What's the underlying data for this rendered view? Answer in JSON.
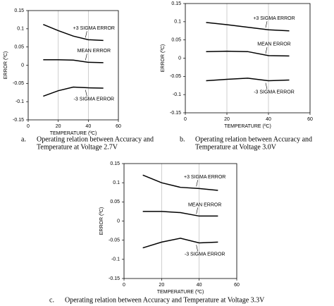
{
  "chart_data": [
    {
      "type": "line",
      "caption_label": "a.",
      "caption": [
        "Operating relation between Accuracy and",
        "Temperature at Voltage 2.7V"
      ],
      "xlabel": "TEMPERATURE (ºC)",
      "ylabel": "ERROR (ºC)",
      "x": [
        10,
        20,
        30,
        40,
        50
      ],
      "xlim": [
        0,
        60
      ],
      "xticks": [
        0,
        20,
        40,
        60
      ],
      "ylim": [
        -0.15,
        0.15
      ],
      "yticks": [
        -0.15,
        -0.1,
        -0.05,
        0,
        0.05,
        0.1,
        0.15
      ],
      "grid": true,
      "series": [
        {
          "name": "+3 SIGMA ERROR",
          "color": "#000000",
          "values": [
            0.112,
            0.095,
            0.08,
            0.07,
            0.068
          ]
        },
        {
          "name": "MEAN ERROR",
          "color": "#000000",
          "values": [
            0.015,
            0.015,
            0.014,
            0.008,
            0.007
          ]
        },
        {
          "name": "-3 SIGMA ERROR",
          "color": "#000000",
          "values": [
            -0.085,
            -0.07,
            -0.06,
            -0.062,
            -0.063
          ]
        }
      ]
    },
    {
      "type": "line",
      "caption_label": "b.",
      "caption": [
        "Operating relation between Accuracy and",
        "Temperature at Voltage 3.0V"
      ],
      "xlabel": "TEMPERATURE (ºC)",
      "ylabel": "ERROR (ºC)",
      "x": [
        10,
        20,
        30,
        40,
        50
      ],
      "xlim": [
        0,
        60
      ],
      "xticks": [
        0,
        20,
        40,
        60
      ],
      "ylim": [
        -0.15,
        0.15
      ],
      "yticks": [
        -0.15,
        -0.1,
        -0.05,
        0,
        0.05,
        0.1,
        0.15
      ],
      "grid": true,
      "series": [
        {
          "name": "+3 SIGMA ERROR",
          "color": "#000000",
          "values": [
            0.098,
            0.092,
            0.085,
            0.078,
            0.075
          ]
        },
        {
          "name": "MEAN ERROR",
          "color": "#000000",
          "values": [
            0.018,
            0.019,
            0.018,
            0.007,
            0.006
          ]
        },
        {
          "name": "-3 SIGMA ERROR",
          "color": "#000000",
          "values": [
            -0.062,
            -0.058,
            -0.055,
            -0.062,
            -0.06
          ]
        }
      ]
    },
    {
      "type": "line",
      "caption_label": "c.",
      "caption": [
        "Operating relation between Accuracy and Temperature at Voltage 3.3V"
      ],
      "xlabel": "TEMPERATURE (ºC)",
      "ylabel": "ERROR (ºC)",
      "x": [
        10,
        20,
        30,
        40,
        50
      ],
      "xlim": [
        0,
        60
      ],
      "xticks": [
        0,
        20,
        40,
        60
      ],
      "ylim": [
        -0.15,
        0.15
      ],
      "yticks": [
        -0.15,
        -0.1,
        -0.05,
        0,
        0.05,
        0.1,
        0.15
      ],
      "grid": true,
      "series": [
        {
          "name": "+3 SIGMA ERROR",
          "color": "#000000",
          "values": [
            0.12,
            0.1,
            0.088,
            0.085,
            0.08
          ]
        },
        {
          "name": "MEAN ERROR",
          "color": "#000000",
          "values": [
            0.025,
            0.025,
            0.022,
            0.013,
            0.013
          ]
        },
        {
          "name": "-3 SIGMA ERROR",
          "color": "#000000",
          "values": [
            -0.07,
            -0.055,
            -0.045,
            -0.057,
            -0.055
          ]
        }
      ]
    }
  ]
}
